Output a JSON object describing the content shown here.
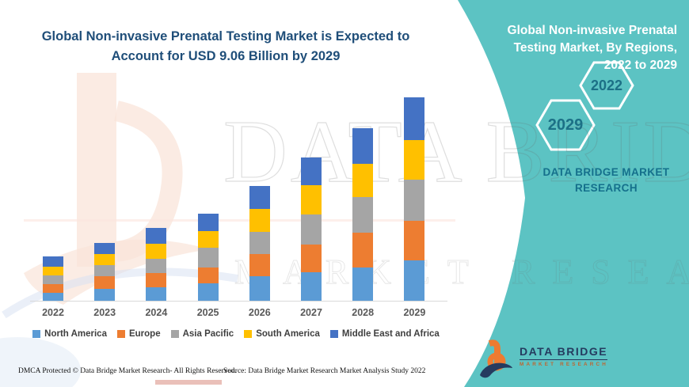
{
  "header": {
    "title_lines": [
      "Global Non-invasive Prenatal Testing Market is Expected to",
      "Account for USD 9.06 Billion by 2029"
    ]
  },
  "side_panel": {
    "heading_lines": [
      "Global Non-invasive Prenatal",
      "Testing Market, By Regions,",
      "2022 to 2029"
    ],
    "hexagons": [
      {
        "label": "2029"
      },
      {
        "label": "2022"
      }
    ],
    "brand_line1": "DATA BRIDGE MARKET",
    "brand_line2": "RESEARCH"
  },
  "chart_data": {
    "type": "bar",
    "stacked": true,
    "title": "Global Non-invasive Prenatal Testing Market is Expected to Account for USD 9.06 Billion by 2029",
    "unit": "USD Billion",
    "categories": [
      "2022",
      "2023",
      "2024",
      "2025",
      "2026",
      "2027",
      "2028",
      "2029"
    ],
    "series": [
      {
        "name": "North America",
        "color": "#5B9BD5",
        "values": [
          0.35,
          0.53,
          0.6,
          0.78,
          1.09,
          1.27,
          1.48,
          1.8
        ]
      },
      {
        "name": "Europe",
        "color": "#ED7D31",
        "values": [
          0.39,
          0.56,
          0.63,
          0.71,
          0.99,
          1.23,
          1.55,
          1.76
        ]
      },
      {
        "name": "Asia Pacific",
        "color": "#A5A5A5",
        "values": [
          0.39,
          0.49,
          0.63,
          0.88,
          0.99,
          1.34,
          1.59,
          1.83
        ]
      },
      {
        "name": "South America",
        "color": "#FFC000",
        "values": [
          0.39,
          0.49,
          0.67,
          0.74,
          1.02,
          1.3,
          1.48,
          1.76
        ]
      },
      {
        "name": "Middle East and Africa",
        "color": "#4472C4",
        "values": [
          0.46,
          0.49,
          0.71,
          0.78,
          1.02,
          1.23,
          1.59,
          1.91
        ]
      }
    ],
    "totals": [
      1.98,
      2.56,
      3.24,
      3.89,
      5.11,
      6.37,
      7.69,
      9.06
    ],
    "xlabel": "",
    "ylabel": "",
    "ylim": [
      0,
      9.5
    ],
    "gridlines": false,
    "y_axis_visible": false,
    "legend_position": "bottom"
  },
  "footer": {
    "dmca": "DMCA Protected © Data Bridge Market Research- All Rights Reserved.",
    "source": "Source: Data Bridge Market Research Market Analysis Study 2022"
  },
  "logo": {
    "name": "DATA BRIDGE",
    "sub": "MARKET RESEARCH"
  },
  "watermark": {
    "row1": "DATA BRIDGE",
    "row2": "MARKET RESEARCH"
  },
  "colors": {
    "teal_panel": "#5CC3C3",
    "title_navy": "#1F4E79",
    "hex_text": "#1C7086",
    "brand_text": "#15708C",
    "logo_navy": "#253B5F",
    "logo_orange": "#EE7B30"
  }
}
